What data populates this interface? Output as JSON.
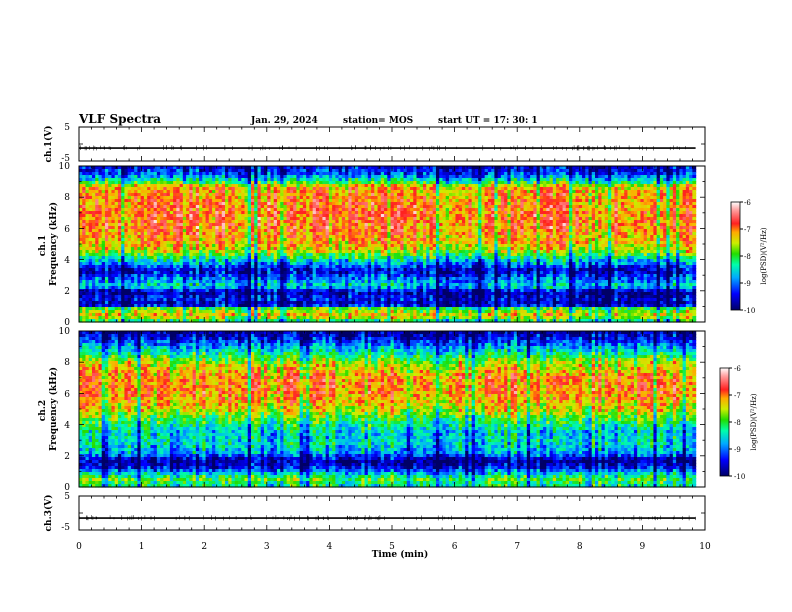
{
  "header": {
    "title": "VLF Spectra",
    "date": "Jan. 29, 2024",
    "station": "station= MOS",
    "start": "start  UT =   17: 30: 1"
  },
  "colors": {
    "spectrum_stops": [
      "#000066",
      "#0000ff",
      "#00aaff",
      "#00ffaa",
      "#22dd00",
      "#ccee00",
      "#ffaa00",
      "#ff2020",
      "#ff8888",
      "#ffffff"
    ]
  },
  "chart_data": [
    {
      "type": "line",
      "name": "ch1-voltage",
      "ylabel": "ch.1(V)",
      "ylim": [
        -5,
        5
      ],
      "yticks": [
        "5",
        "-5"
      ],
      "xlim": [
        0,
        10
      ],
      "level": -1.2,
      "data_end_min": 9.85
    },
    {
      "type": "heatmap",
      "name": "ch1-spectrogram",
      "ylabel": "ch.1\nFrequency (kHz)",
      "ylim": [
        0,
        10
      ],
      "yticks": [
        "0",
        "2",
        "4",
        "6",
        "8",
        "10"
      ],
      "xlim": [
        0,
        10
      ],
      "data_end_min": 9.85,
      "colorbar": {
        "label": "log(PSD)(V²/Hz)",
        "range": [
          -10,
          -6
        ],
        "ticks": [
          "-6",
          "-7",
          "-8",
          "-9",
          "-10"
        ]
      },
      "profile_khz_logpsd": [
        [
          0,
          -8.5
        ],
        [
          0.4,
          -7.2
        ],
        [
          0.9,
          -8
        ],
        [
          1.1,
          -9.8
        ],
        [
          1.5,
          -9.4
        ],
        [
          1.9,
          -9.8
        ],
        [
          2.3,
          -8.5
        ],
        [
          2.8,
          -9
        ],
        [
          3.3,
          -9.6
        ],
        [
          3.9,
          -8.6
        ],
        [
          4.5,
          -7.6
        ],
        [
          5,
          -7.2
        ],
        [
          6,
          -6.9
        ],
        [
          7,
          -6.9
        ],
        [
          8,
          -7
        ],
        [
          8.7,
          -7.2
        ],
        [
          9,
          -8.2
        ],
        [
          9.5,
          -9.2
        ],
        [
          10,
          -9.5
        ]
      ]
    },
    {
      "type": "heatmap",
      "name": "ch2-spectrogram",
      "ylabel": "ch.2\nFrequency (kHz)",
      "ylim": [
        0,
        10
      ],
      "yticks": [
        "0",
        "2",
        "4",
        "6",
        "8",
        "10"
      ],
      "xlim": [
        0,
        10
      ],
      "data_end_min": 9.85,
      "colorbar": {
        "label": "log(PSD)(V²/Hz)",
        "range": [
          -10,
          -6
        ],
        "ticks": [
          "-6",
          "-7",
          "-8",
          "-9",
          "-10"
        ]
      },
      "profile_khz_logpsd": [
        [
          0,
          -8.4
        ],
        [
          0.5,
          -7.9
        ],
        [
          1,
          -8.9
        ],
        [
          1.3,
          -9.5
        ],
        [
          1.7,
          -9.8
        ],
        [
          2.2,
          -8.8
        ],
        [
          2.8,
          -8.5
        ],
        [
          3.5,
          -8.6
        ],
        [
          4.2,
          -8.1
        ],
        [
          5,
          -7.4
        ],
        [
          6,
          -7
        ],
        [
          7,
          -7
        ],
        [
          8,
          -7.6
        ],
        [
          8.8,
          -8.6
        ],
        [
          9.5,
          -9.4
        ],
        [
          10,
          -9.8
        ]
      ]
    },
    {
      "type": "line",
      "name": "ch3-voltage",
      "ylabel": "ch.3(V)",
      "ylim": [
        -5,
        5
      ],
      "yticks": [
        "5",
        "-5"
      ],
      "xlim": [
        0,
        10
      ],
      "level": -1.5,
      "data_end_min": 9.85,
      "xticks": [
        "0",
        "1",
        "2",
        "3",
        "4",
        "5",
        "6",
        "7",
        "8",
        "9",
        "10"
      ],
      "xlabel": "Time (min)"
    }
  ]
}
